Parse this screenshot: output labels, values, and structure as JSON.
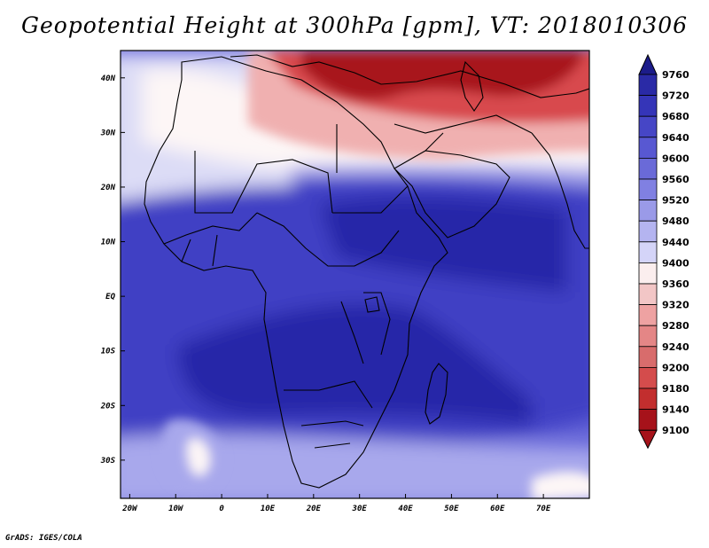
{
  "title": "Geopotential Height at 300hPa [gpm], VT: 2018010306",
  "footer": "GrADS: IGES/COLA",
  "colors": {
    "red_dark": "#a8141c",
    "red": "#d84a4e",
    "red_light": "#f0b0b0",
    "white": "#fdf6f6",
    "lav_light": "#dcdcf6",
    "lav": "#a8a8ec",
    "blue_mid": "#6464d8",
    "blue": "#4040c4",
    "blue_dark": "#2828a8",
    "navy": "#1a1a8c"
  },
  "map": {
    "lon_range": [
      -22,
      80
    ],
    "lat_range": [
      -37,
      45
    ],
    "x_ticks": [
      {
        "value": -20,
        "label": "20W"
      },
      {
        "value": -10,
        "label": "10W"
      },
      {
        "value": 0,
        "label": "0"
      },
      {
        "value": 10,
        "label": "10E"
      },
      {
        "value": 20,
        "label": "20E"
      },
      {
        "value": 30,
        "label": "30E"
      },
      {
        "value": 40,
        "label": "40E"
      },
      {
        "value": 50,
        "label": "50E"
      },
      {
        "value": 60,
        "label": "60E"
      },
      {
        "value": 70,
        "label": "70E"
      }
    ],
    "y_ticks": [
      {
        "value": 40,
        "label": "40N"
      },
      {
        "value": 30,
        "label": "30N"
      },
      {
        "value": 20,
        "label": "20N"
      },
      {
        "value": 10,
        "label": "10N"
      },
      {
        "value": 0,
        "label": "EQ"
      },
      {
        "value": -10,
        "label": "10S"
      },
      {
        "value": -20,
        "label": "20S"
      },
      {
        "value": -30,
        "label": "30S"
      }
    ]
  },
  "colorbar": {
    "levels": [
      "9760",
      "9720",
      "9680",
      "9640",
      "9600",
      "9560",
      "9520",
      "9480",
      "9440",
      "9400",
      "9360",
      "9320",
      "9280",
      "9240",
      "9200",
      "9180",
      "9140",
      "9100"
    ],
    "colors": [
      "#1c1c8a",
      "#2a2aa6",
      "#3535b8",
      "#4646c6",
      "#5858d2",
      "#6a6ad8",
      "#8080e2",
      "#9a9ae8",
      "#b4b4f0",
      "#d4d4f8",
      "#fbeeee",
      "#f2c6c6",
      "#eea2a2",
      "#e48686",
      "#d86c6c",
      "#d44c4c",
      "#c22e2e",
      "#a6121a"
    ]
  }
}
